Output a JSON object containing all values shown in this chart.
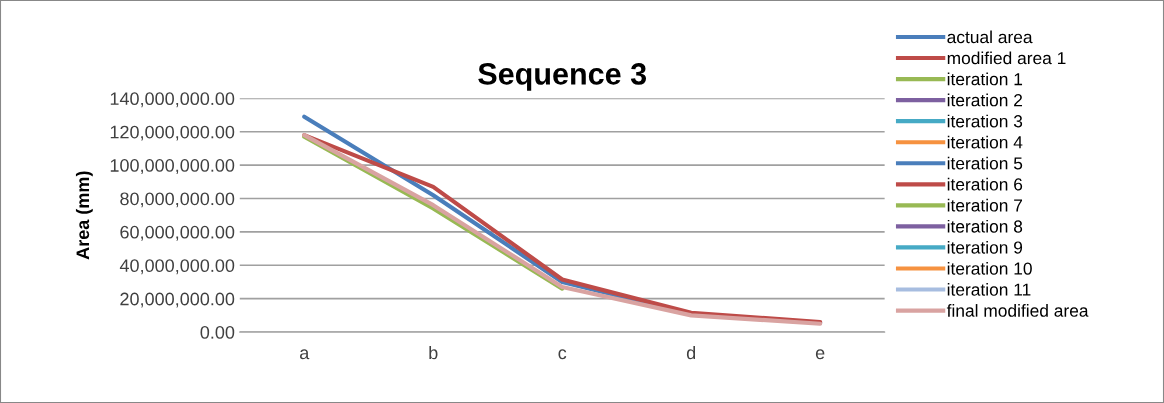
{
  "chart_data": {
    "type": "line",
    "title": "Sequence 3",
    "ylabel": "Area (mm)",
    "categories": [
      "a",
      "b",
      "c",
      "d",
      "e"
    ],
    "ylim": [
      0,
      140000000
    ],
    "yticks": [
      {
        "value": 0,
        "label": "0.00"
      },
      {
        "value": 20000000,
        "label": "20,000,000.00"
      },
      {
        "value": 40000000,
        "label": "40,000,000.00"
      },
      {
        "value": 60000000,
        "label": "60,000,000.00"
      },
      {
        "value": 80000000,
        "label": "80,000,000.00"
      },
      {
        "value": 100000000,
        "label": "100,000,000.00"
      },
      {
        "value": 120000000,
        "label": "120,000,000.00"
      },
      {
        "value": 140000000,
        "label": "140,000,000.00"
      }
    ],
    "grid": "y",
    "legend": "right",
    "marker": "none",
    "line_style": "solid",
    "series": [
      {
        "name": "actual area",
        "color": "#4a7ebb",
        "values": [
          129000000,
          82000000,
          30000000,
          11000000,
          5500000
        ]
      },
      {
        "name": "modified area 1",
        "color": "#be4b48",
        "values": [
          118000000,
          87000000,
          31500000,
          11500000,
          6000000
        ]
      },
      {
        "name": "iteration 1",
        "color": "#98b954",
        "values": [
          117000000,
          74000000,
          26000000,
          null,
          null
        ]
      },
      {
        "name": "iteration 2",
        "color": "#7d60a0",
        "values": [
          null,
          null,
          null,
          null,
          null
        ]
      },
      {
        "name": "iteration 3",
        "color": "#46aac5",
        "values": [
          null,
          null,
          null,
          null,
          null
        ]
      },
      {
        "name": "iteration 4",
        "color": "#f69240",
        "values": [
          null,
          null,
          null,
          null,
          null
        ]
      },
      {
        "name": "iteration 5",
        "color": "#4a7ebb",
        "values": [
          null,
          null,
          null,
          null,
          null
        ]
      },
      {
        "name": "iteration 6",
        "color": "#be4b48",
        "values": [
          null,
          null,
          null,
          null,
          null
        ]
      },
      {
        "name": "iteration 7",
        "color": "#98b954",
        "values": [
          null,
          null,
          null,
          null,
          null
        ]
      },
      {
        "name": "iteration 8",
        "color": "#7d60a0",
        "values": [
          null,
          null,
          null,
          null,
          null
        ]
      },
      {
        "name": "iteration 9",
        "color": "#46aac5",
        "values": [
          null,
          null,
          null,
          null,
          null
        ]
      },
      {
        "name": "iteration 10",
        "color": "#f69240",
        "values": [
          null,
          null,
          null,
          null,
          null
        ]
      },
      {
        "name": "iteration 11",
        "color": "#a7bde0",
        "values": [
          null,
          null,
          null,
          null,
          null
        ]
      },
      {
        "name": "final modified area",
        "color": "#d9a3a1",
        "values": [
          118000000,
          76000000,
          27000000,
          10000000,
          5000000
        ]
      }
    ]
  }
}
